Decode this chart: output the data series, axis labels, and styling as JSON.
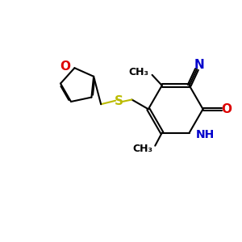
{
  "bg_color": "#ffffff",
  "bond_color": "#000000",
  "N_color": "#0000cc",
  "O_color": "#dd0000",
  "S_color": "#bbbb00",
  "bond_width": 1.5,
  "font_size": 10,
  "fig_size": [
    3.0,
    3.0
  ],
  "dpi": 100,
  "xlim": [
    0,
    10
  ],
  "ylim": [
    0,
    10
  ]
}
